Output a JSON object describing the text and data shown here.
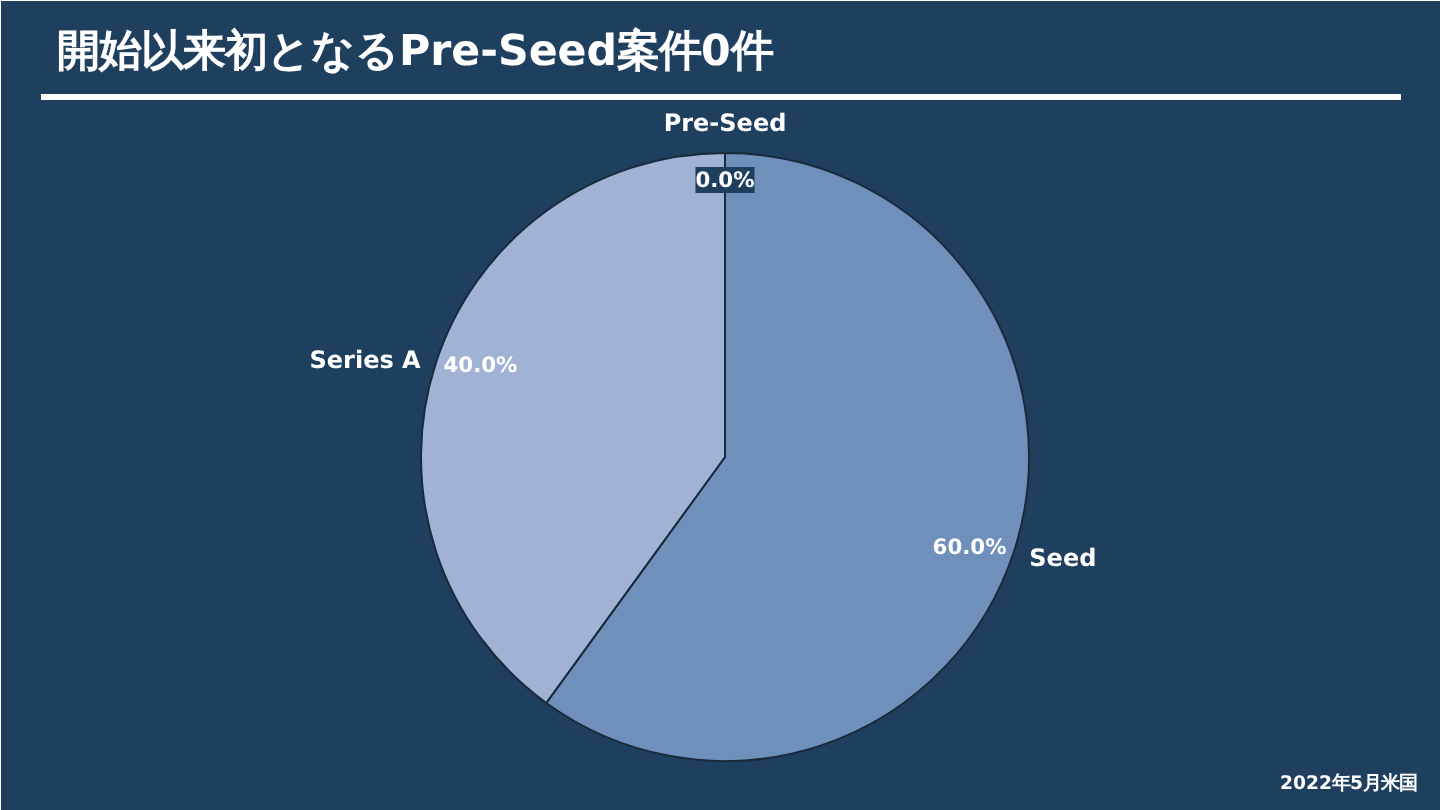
{
  "chart_data": {
    "type": "pie",
    "title": "開始以来初となるPre-Seed案件0件",
    "categories": [
      "Pre-Seed",
      "Seed",
      "Series A"
    ],
    "values": [
      0,
      60,
      40
    ],
    "value_labels": [
      "0.0%",
      "60.0%",
      "40.0%"
    ],
    "colors": [
      "#4a6a94",
      "#7090bc",
      "#a0b3d4"
    ],
    "annotations": [
      "2022年5月米国"
    ]
  }
}
